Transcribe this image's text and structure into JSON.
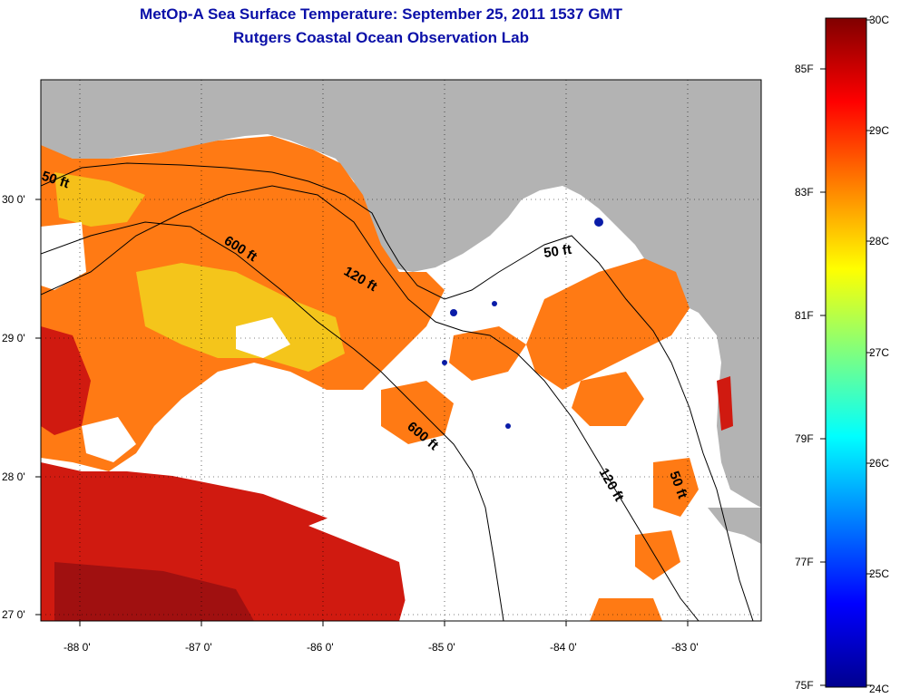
{
  "title": {
    "line1": "MetOp-A Sea Surface Temperature:  September 25, 2011 1537 GMT",
    "line2": "Rutgers Coastal Ocean Observation Lab"
  },
  "map": {
    "lat_ticks": [
      "30 0'",
      "29 0'",
      "28 0'",
      "27 0'"
    ],
    "lon_ticks": [
      "-88 0'",
      "-87 0'",
      "-86 0'",
      "-85 0'",
      "-84 0'",
      "-83 0'"
    ],
    "contour_labels": [
      "50 ft",
      "600 ft",
      "120 ft",
      "50 ft",
      "600 ft",
      "120 ft",
      "50 ft"
    ],
    "colors": {
      "land": "#b3b3b3",
      "cloud": "#ffffff",
      "warm_sst": "#ff7a14",
      "hot_sst": "#d01a10",
      "cool_sst": "#f2d21c"
    }
  },
  "colorbar": {
    "fahrenheit_labels": [
      "85F",
      "83F",
      "81F",
      "79F",
      "77F",
      "75F"
    ],
    "celsius_labels": [
      "30C",
      "29C",
      "28C",
      "27C",
      "26C",
      "25C",
      "24C"
    ]
  }
}
